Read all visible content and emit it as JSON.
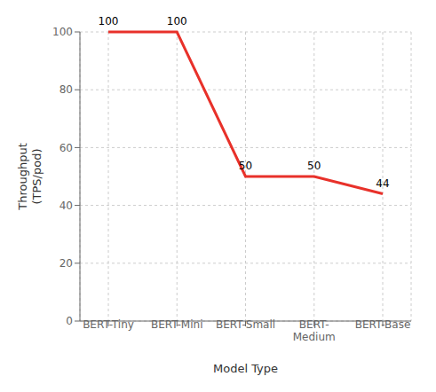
{
  "chart_data": {
    "type": "line",
    "categories": [
      "BERT-Tiny",
      "BERT-Mini",
      "BERT-Small",
      "BERT-\nMedium",
      "BERT-Base"
    ],
    "values": [
      100,
      100,
      50,
      50,
      44
    ],
    "color": "#e8312a",
    "xlabel": "Model Type",
    "ylabel": "Throughput\n(TPS/pod)",
    "ylim": [
      0,
      100
    ],
    "yticks": [
      0,
      20,
      40,
      60,
      80,
      100
    ],
    "grid": true,
    "data_labels": true
  }
}
